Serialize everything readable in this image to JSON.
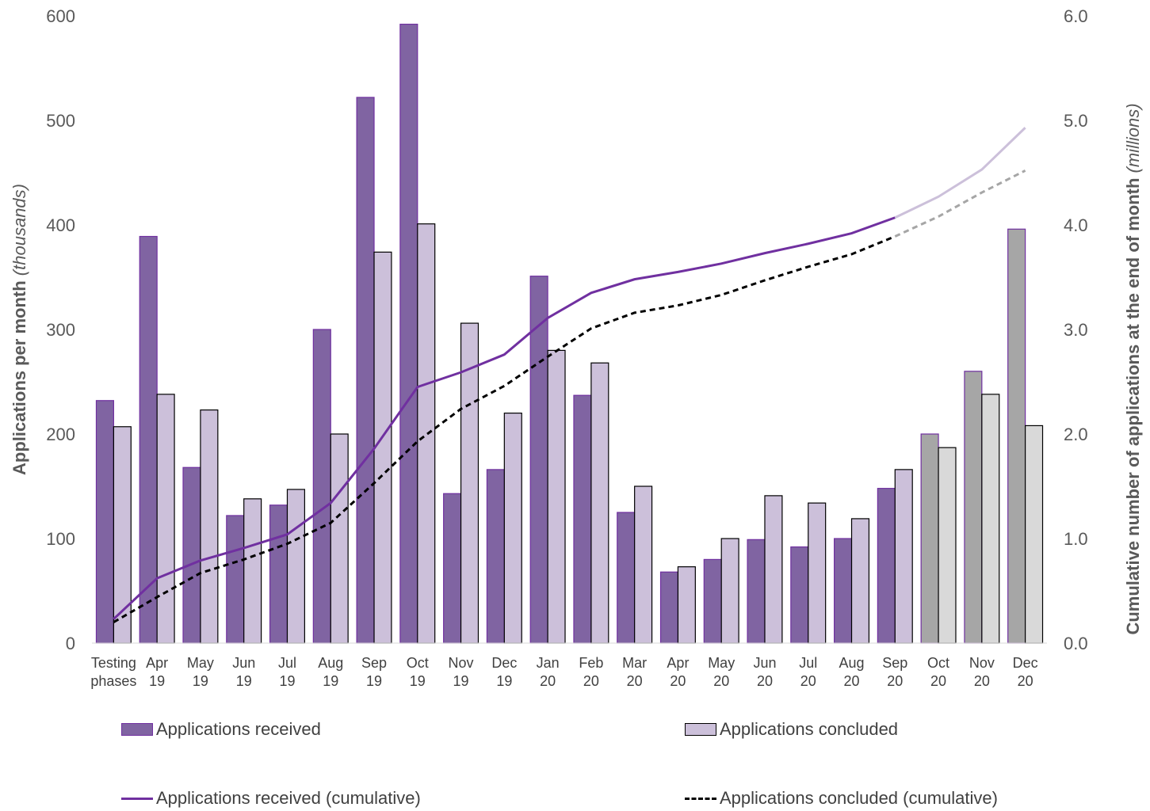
{
  "chart_data": {
    "type": "bar",
    "categories": [
      [
        "Testing",
        "phases"
      ],
      [
        "Apr",
        "19"
      ],
      [
        "May",
        "19"
      ],
      [
        "Jun",
        "19"
      ],
      [
        "Jul",
        "19"
      ],
      [
        "Aug",
        "19"
      ],
      [
        "Sep",
        "19"
      ],
      [
        "Oct",
        "19"
      ],
      [
        "Nov",
        "19"
      ],
      [
        "Dec",
        "19"
      ],
      [
        "Jan",
        "20"
      ],
      [
        "Feb",
        "20"
      ],
      [
        "Mar",
        "20"
      ],
      [
        "Apr",
        "20"
      ],
      [
        "May",
        "20"
      ],
      [
        "Jun",
        "20"
      ],
      [
        "Jul",
        "20"
      ],
      [
        "Aug",
        "20"
      ],
      [
        "Sep",
        "20"
      ],
      [
        "Oct",
        "20"
      ],
      [
        "Nov",
        "20"
      ],
      [
        "Dec",
        "20"
      ]
    ],
    "series": [
      {
        "name": "Applications received",
        "axis": "left",
        "kind": "bar",
        "color": "#8064a2",
        "projected_color": "#a6a6a6",
        "values": [
          232,
          389,
          168,
          122,
          132,
          300,
          522,
          592,
          143,
          166,
          351,
          237,
          125,
          68,
          80,
          99,
          92,
          100,
          148,
          200,
          260,
          396
        ]
      },
      {
        "name": "Applications concluded",
        "axis": "left",
        "kind": "bar",
        "color": "#ccc0da",
        "projected_color": "#d9d9d9",
        "values": [
          207,
          238,
          223,
          138,
          147,
          200,
          374,
          401,
          306,
          220,
          280,
          268,
          150,
          73,
          100,
          141,
          134,
          119,
          166,
          187,
          238,
          208
        ]
      },
      {
        "name": "Applications received (cumulative)",
        "axis": "right",
        "kind": "line",
        "color": "#7030a0",
        "projected_color": "#ccc0da",
        "values": [
          0.23,
          0.62,
          0.79,
          0.91,
          1.04,
          1.34,
          1.86,
          2.45,
          2.59,
          2.76,
          3.11,
          3.35,
          3.48,
          3.55,
          3.63,
          3.73,
          3.82,
          3.92,
          4.07,
          4.27,
          4.53,
          4.93
        ]
      },
      {
        "name": "Applications concluded (cumulative)",
        "axis": "right",
        "kind": "line",
        "style": "dashed",
        "color": "#000000",
        "projected_color": "#a6a6a6",
        "values": [
          0.2,
          0.44,
          0.67,
          0.8,
          0.95,
          1.15,
          1.53,
          1.93,
          2.24,
          2.46,
          2.74,
          3.01,
          3.16,
          3.23,
          3.33,
          3.47,
          3.6,
          3.72,
          3.89,
          4.08,
          4.31,
          4.52
        ]
      }
    ],
    "projected_from_index": 19,
    "ylim": [
      0,
      600
    ],
    "yticks": [
      "0",
      "100",
      "200",
      "300",
      "400",
      "500",
      "600"
    ],
    "y2lim": [
      0,
      6
    ],
    "y2ticks": [
      "0.0",
      "1.0",
      "2.0",
      "3.0",
      "4.0",
      "5.0",
      "6.0"
    ],
    "ylabel": "Applications per month",
    "ylabel_unit": "(thousands)",
    "y2label": "Cumulative number of applications at the end of month",
    "y2label_unit": "(millions)",
    "grid": false,
    "legend_position": "bottom"
  }
}
